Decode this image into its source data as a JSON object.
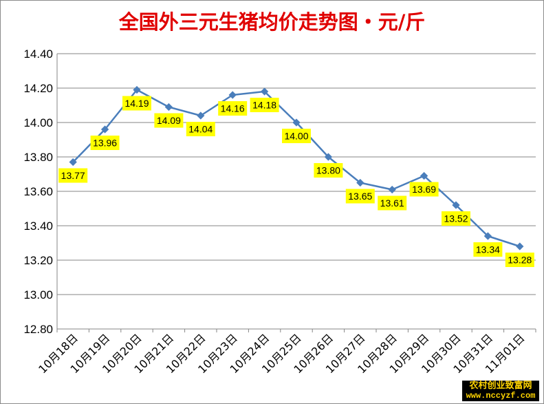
{
  "chart_data": {
    "type": "line",
    "title": "全国外三元生猪均价走势图・元/斤",
    "categories": [
      "10月18日",
      "10月19日",
      "10月20日",
      "10月21日",
      "10月22日",
      "10月23日",
      "10月24日",
      "10月25日",
      "10月26日",
      "10月27日",
      "10月28日",
      "10月29日",
      "10月30日",
      "10月31日",
      "11月01日"
    ],
    "series": [
      {
        "values": [
          13.77,
          13.96,
          14.19,
          14.09,
          14.04,
          14.16,
          14.18,
          14.0,
          13.8,
          13.65,
          13.61,
          13.69,
          13.52,
          13.34,
          13.28
        ]
      }
    ],
    "data_labels": [
      "13.77",
      "13.96",
      "14.19",
      "14.09",
      "14.04",
      "14.16",
      "14.18",
      "14.00",
      "13.80",
      "13.65",
      "13.61",
      "13.69",
      "13.52",
      "13.34",
      "13.28"
    ],
    "yticks": [
      "12.80",
      "13.00",
      "13.20",
      "13.40",
      "13.60",
      "13.80",
      "14.00",
      "14.20",
      "14.40"
    ],
    "ylim": [
      12.8,
      14.4
    ],
    "grid": true,
    "legend": "none",
    "colors": {
      "line": "#4a7ebb",
      "grid": "#868686",
      "label_bg": "#ffff00",
      "title": "#e00000"
    }
  },
  "watermark": {
    "line1": "农村创业致富网",
    "line2": "www.nccyzf.com"
  }
}
